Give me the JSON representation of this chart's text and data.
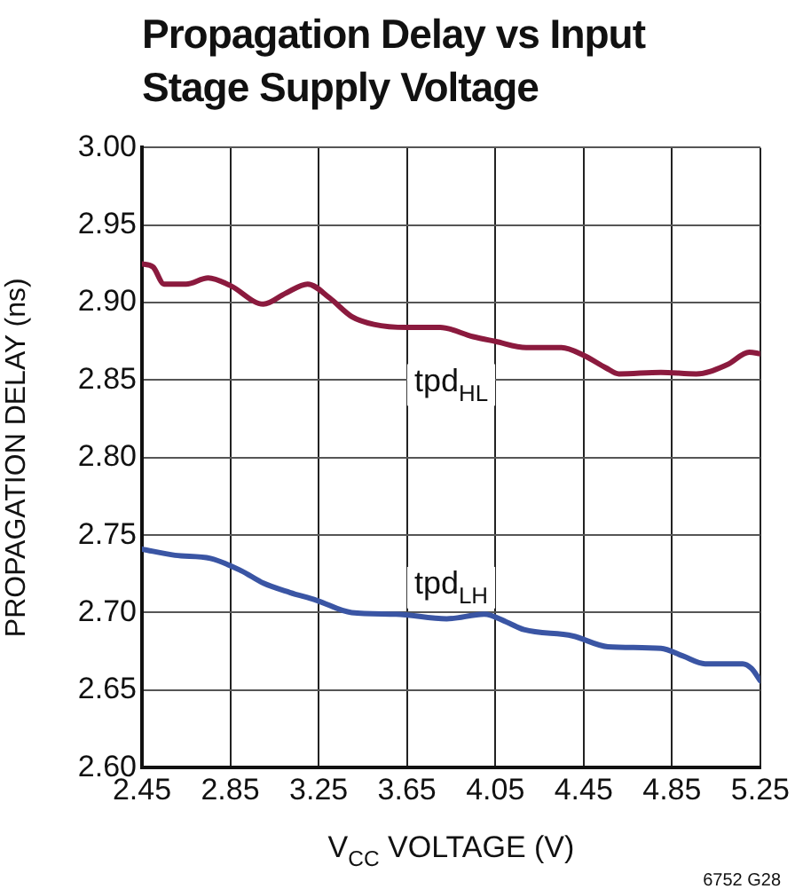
{
  "chart_data": {
    "type": "line",
    "title": "Propagation Delay vs Input Stage Supply Voltage",
    "xlabel": "V$_{CC}$ VOLTAGE (V)",
    "ylabel": "PROPAGATION DELAY (ns)",
    "xlim": [
      2.45,
      5.25
    ],
    "xticks": [
      {
        "value": 2.45,
        "label": "2.45"
      },
      {
        "value": 2.85,
        "label": "2.85"
      },
      {
        "value": 3.25,
        "label": "3.25"
      },
      {
        "value": 3.65,
        "label": "3.65"
      },
      {
        "value": 4.05,
        "label": "4.05"
      },
      {
        "value": 4.45,
        "label": "4.45"
      },
      {
        "value": 4.85,
        "label": "4.85"
      },
      {
        "value": 5.25,
        "label": "5.25"
      }
    ],
    "ylim": [
      2.6,
      3.0
    ],
    "yticks": [
      {
        "value": 2.6,
        "label": "2.60"
      },
      {
        "value": 2.65,
        "label": "2.65"
      },
      {
        "value": 2.7,
        "label": "2.70"
      },
      {
        "value": 2.75,
        "label": "2.75"
      },
      {
        "value": 2.8,
        "label": "2.80"
      },
      {
        "value": 2.85,
        "label": "2.85"
      },
      {
        "value": 2.9,
        "label": "2.90"
      },
      {
        "value": 2.95,
        "label": "2.95"
      },
      {
        "value": 3.0,
        "label": "3.00"
      }
    ],
    "grid": true,
    "marker": "none",
    "line_style": "solid",
    "legend": false,
    "series": [
      {
        "name": "tpd$_{HL}$",
        "color": "#8b1a3e",
        "x": [
          2.45,
          2.5,
          2.55,
          2.65,
          2.75,
          2.85,
          3.0,
          3.1,
          3.2,
          3.3,
          3.4,
          3.5,
          3.65,
          3.8,
          3.95,
          4.05,
          4.19,
          4.35,
          4.45,
          4.55,
          4.61,
          4.8,
          4.96,
          5.1,
          5.2,
          5.25
        ],
        "values": [
          2.925,
          2.923,
          2.912,
          2.912,
          2.916,
          2.911,
          2.899,
          2.906,
          2.912,
          2.903,
          2.891,
          2.886,
          2.884,
          2.884,
          2.878,
          2.875,
          2.871,
          2.871,
          2.866,
          2.858,
          2.854,
          2.855,
          2.854,
          2.86,
          2.868,
          2.867
        ]
      },
      {
        "name": "tpd$_{LH}$",
        "color": "#3a55a4",
        "x": [
          2.45,
          2.6,
          2.76,
          2.9,
          3.0,
          3.12,
          3.24,
          3.4,
          3.6,
          3.83,
          4.0,
          4.1,
          4.18,
          4.4,
          4.56,
          4.8,
          4.9,
          5.0,
          5.17,
          5.21,
          5.25
        ],
        "values": [
          2.741,
          2.737,
          2.735,
          2.727,
          2.719,
          2.713,
          2.708,
          2.7,
          2.699,
          2.696,
          2.699,
          2.694,
          2.689,
          2.685,
          2.678,
          2.677,
          2.672,
          2.667,
          2.667,
          2.664,
          2.656
        ]
      }
    ],
    "annotations": [
      "6752 G28"
    ]
  }
}
